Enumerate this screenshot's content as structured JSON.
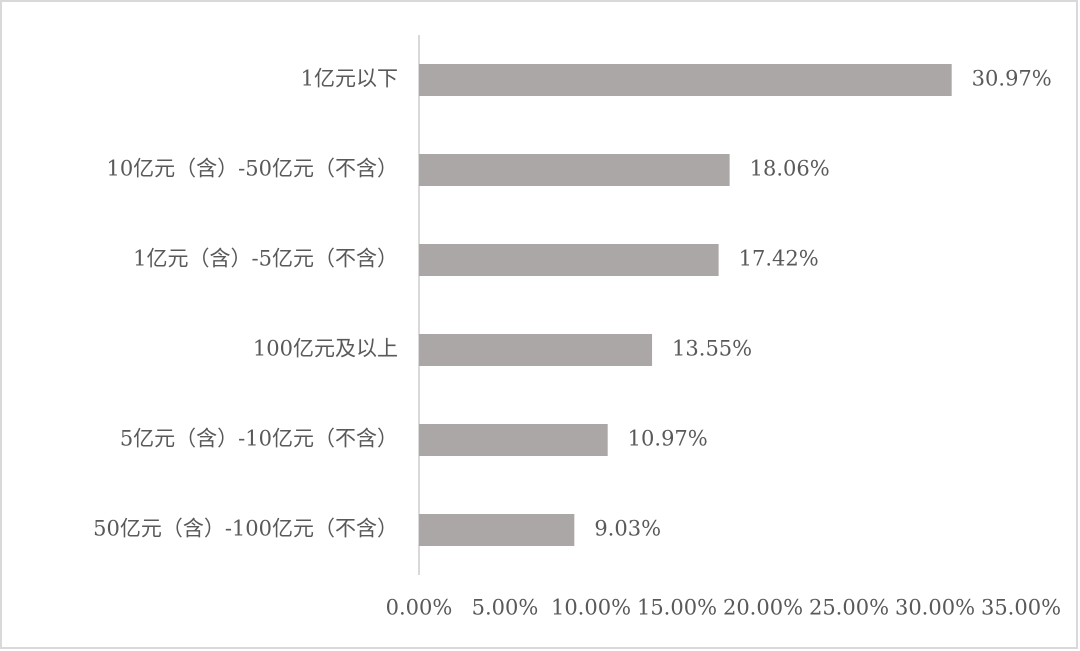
{
  "chart_data": {
    "type": "bar",
    "orientation": "horizontal",
    "categories": [
      "1亿元以下",
      "10亿元（含）-50亿元（不含）",
      "1亿元（含）-5亿元（不含）",
      "100亿元及以上",
      "5亿元（含）-10亿元（不含）",
      "50亿元（含）-100亿元（不含）"
    ],
    "values": [
      30.97,
      18.06,
      17.42,
      13.55,
      10.97,
      9.03
    ],
    "value_labels": [
      "30.97%",
      "18.06%",
      "17.42%",
      "13.55%",
      "10.97%",
      "9.03%"
    ],
    "color": "#aba7a6",
    "xlim": [
      0,
      35
    ],
    "xticks": [
      {
        "value": 0,
        "label": "0.00%"
      },
      {
        "value": 5,
        "label": "5.00%"
      },
      {
        "value": 10,
        "label": "10.00%"
      },
      {
        "value": 15,
        "label": "15.00%"
      },
      {
        "value": 20,
        "label": "20.00%"
      },
      {
        "value": 25,
        "label": "25.00%"
      },
      {
        "value": 30,
        "label": "30.00%"
      },
      {
        "value": 35,
        "label": "35.00%"
      }
    ],
    "grid": false
  }
}
